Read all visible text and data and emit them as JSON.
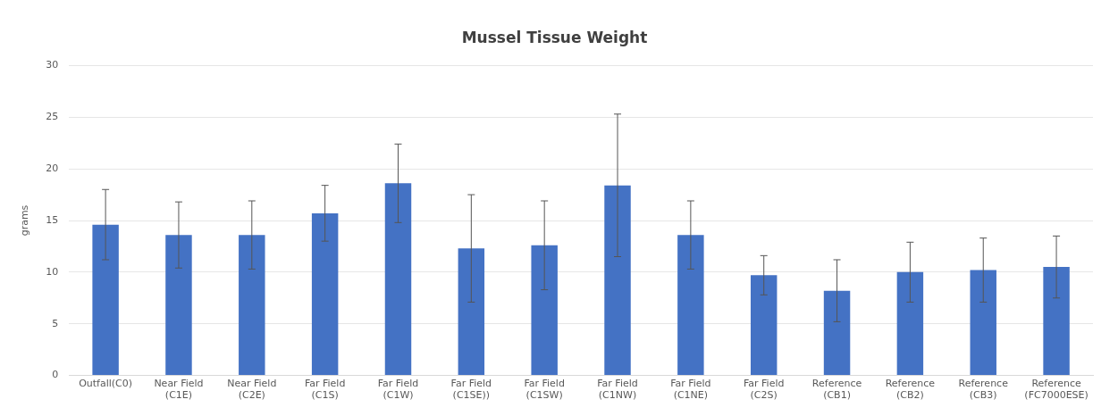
{
  "chart_data": {
    "type": "bar",
    "title": "Mussel Tissue Weight",
    "ylabel": "grams",
    "categories": [
      "Outfall(C0)",
      "Near Field (C1E)",
      "Near Field (C2E)",
      "Far Field (C1S)",
      "Far Field (C1W)",
      "Far Field (C1SE))",
      "Far Field (C1SW)",
      "Far Field (C1NW)",
      "Far Field (C1NE)",
      "Far Field (C2S)",
      "Reference (CB1)",
      "Reference (CB2)",
      "Reference (CB3)",
      "Reference (FC7000ESE)"
    ],
    "values": [
      14.6,
      13.6,
      13.6,
      15.7,
      18.6,
      12.3,
      12.6,
      18.4,
      13.6,
      9.7,
      8.2,
      10.0,
      10.2,
      10.5
    ],
    "errors": [
      3.4,
      3.2,
      3.3,
      2.7,
      3.8,
      5.2,
      4.3,
      6.9,
      3.3,
      1.9,
      3.0,
      2.9,
      3.1,
      3.0
    ],
    "color": "#4472c4",
    "ylim": [
      0,
      30
    ],
    "yticks": [
      0,
      5,
      10,
      15,
      20,
      25,
      30
    ],
    "grid": "y"
  }
}
